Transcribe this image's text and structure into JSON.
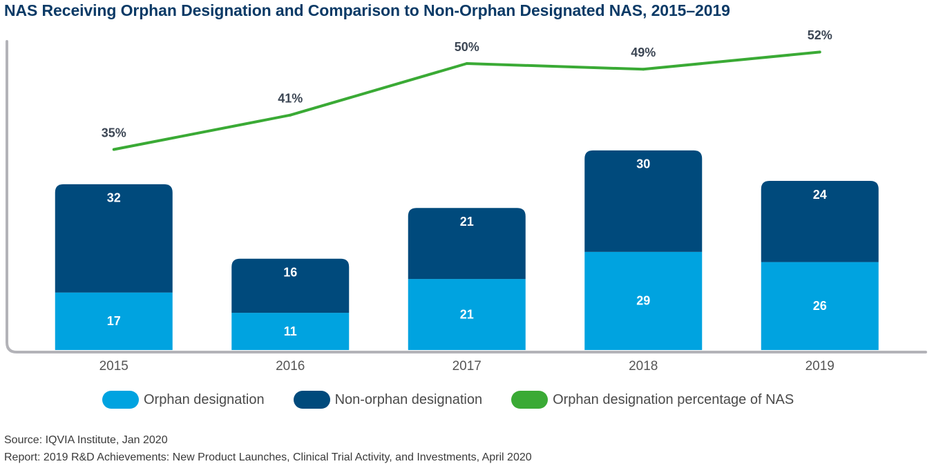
{
  "chart_data": {
    "type": "bar",
    "stacked": true,
    "title": "NAS Receiving Orphan Designation and Comparison to Non-Orphan Designated NAS, 2015–2019",
    "categories": [
      "2015",
      "2016",
      "2017",
      "2018",
      "2019"
    ],
    "series": [
      {
        "name": "Orphan designation",
        "color": "#00a3e0",
        "values": [
          17,
          11,
          21,
          29,
          26
        ]
      },
      {
        "name": "Non-orphan designation",
        "color": "#004a7c",
        "values": [
          32,
          16,
          21,
          30,
          24
        ]
      }
    ],
    "line_series": {
      "name": "Orphan designation percentage of NAS",
      "color": "#3aaa35",
      "values": [
        35,
        41,
        50,
        49,
        52
      ],
      "labels": [
        "35%",
        "41%",
        "50%",
        "49%",
        "52%"
      ],
      "ylim": [
        0,
        60
      ]
    },
    "ylim": [
      0,
      65
    ],
    "xlabel": "",
    "ylabel": "",
    "legend": "bottom",
    "grid": false
  },
  "source": {
    "line1": "Source: IQVIA Institute, Jan 2020",
    "line2": "Report: 2019 R&D Achievements: New Product Launches, Clinical Trial Activity, and Investments, April 2020"
  }
}
